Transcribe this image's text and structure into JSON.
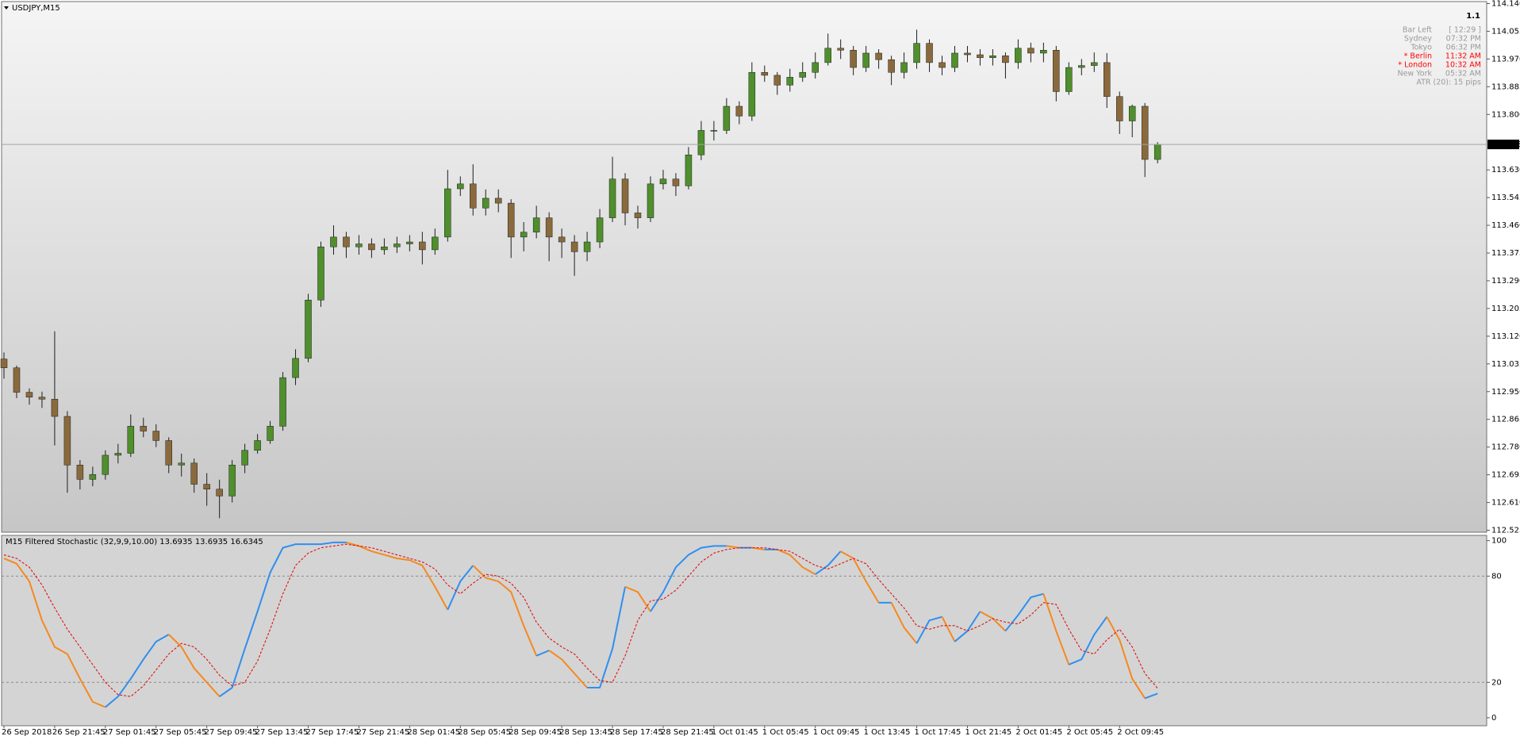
{
  "chart_data": [
    {
      "type": "candlestick",
      "title": "USDJPY,M15",
      "categories": [
        "26 Sep 2018",
        null,
        null,
        null,
        "26 Sep 21:45",
        null,
        null,
        null,
        "27 Sep 01:45",
        null,
        null,
        null,
        "27 Sep 05:45",
        null,
        null,
        null,
        "27 Sep 09:45",
        null,
        null,
        null,
        "27 Sep 13:45",
        null,
        null,
        null,
        "27 Sep 17:45",
        null,
        null,
        null,
        "27 Sep 21:45",
        null,
        null,
        null,
        "28 Sep 01:45",
        null,
        null,
        null,
        "28 Sep 05:45",
        null,
        null,
        null,
        "28 Sep 09:45",
        null,
        null,
        null,
        "28 Sep 13:45",
        null,
        null,
        null,
        "28 Sep 17:45",
        null,
        null,
        null,
        "28 Sep 21:45",
        null,
        null,
        null,
        "1 Oct 01:45",
        null,
        null,
        null,
        "1 Oct 05:45",
        null,
        null,
        null,
        "1 Oct 09:45",
        null,
        null,
        null,
        "1 Oct 13:45",
        null,
        null,
        null,
        "1 Oct 17:45",
        null,
        null,
        null,
        "1 Oct 21:45",
        null,
        null,
        null,
        "2 Oct 01:45",
        null,
        null,
        null,
        "2 Oct 05:45",
        null,
        null,
        null,
        "2 Oct 09:45",
        null,
        null,
        null
      ],
      "open": [
        113.05,
        113.023,
        112.948,
        112.933,
        112.927,
        112.874,
        112.725,
        112.681,
        112.696,
        112.755,
        112.761,
        112.844,
        112.829,
        112.8,
        112.725,
        112.731,
        112.666,
        112.651,
        112.63,
        112.725,
        112.77,
        112.8,
        112.844,
        112.993,
        113.052,
        113.231,
        113.394,
        113.424,
        113.394,
        113.403,
        113.385,
        113.394,
        113.403,
        113.409,
        113.385,
        113.424,
        113.572,
        113.587,
        113.513,
        113.543,
        113.528,
        113.424,
        113.439,
        113.483,
        113.424,
        113.409,
        113.379,
        113.409,
        113.483,
        113.602,
        113.498,
        113.483,
        113.587,
        113.602,
        113.581,
        113.676,
        113.751,
        113.751,
        113.825,
        113.795,
        113.929,
        113.92,
        113.89,
        113.914,
        113.929,
        113.959,
        114.003,
        113.997,
        113.944,
        113.988,
        113.968,
        113.929,
        113.959,
        114.018,
        113.959,
        113.944,
        113.988,
        113.983,
        113.974,
        113.98,
        113.959,
        114.003,
        113.988,
        113.997,
        113.87,
        113.944,
        113.95,
        113.959,
        113.855,
        113.78,
        113.825,
        113.662
      ],
      "high": [
        113.07,
        113.03,
        112.96,
        112.95,
        113.135,
        112.89,
        112.74,
        112.72,
        112.77,
        112.79,
        112.88,
        112.87,
        112.85,
        112.81,
        112.76,
        112.745,
        112.7,
        112.68,
        112.74,
        112.79,
        112.82,
        112.86,
        113.01,
        113.08,
        113.25,
        113.41,
        113.46,
        113.44,
        113.43,
        113.42,
        113.42,
        113.425,
        113.43,
        113.44,
        113.45,
        113.63,
        113.61,
        113.647,
        113.57,
        113.57,
        113.54,
        113.47,
        113.52,
        113.5,
        113.45,
        113.43,
        113.44,
        113.51,
        113.67,
        113.62,
        113.52,
        113.61,
        113.63,
        113.62,
        113.7,
        113.78,
        113.78,
        113.85,
        113.84,
        113.96,
        113.95,
        113.93,
        113.94,
        113.96,
        113.99,
        114.048,
        114.03,
        114.01,
        114.01,
        114.0,
        113.98,
        113.99,
        114.06,
        114.03,
        113.98,
        114.01,
        114.01,
        114.0,
        114.0,
        113.99,
        114.03,
        114.02,
        114.02,
        114.01,
        113.96,
        113.97,
        113.99,
        113.988,
        113.87,
        113.83,
        113.835,
        113.715
      ],
      "low": [
        112.99,
        112.93,
        112.91,
        112.9,
        112.785,
        112.64,
        112.65,
        112.66,
        112.68,
        112.73,
        112.75,
        112.81,
        112.78,
        112.7,
        112.69,
        112.64,
        112.6,
        112.562,
        112.61,
        112.7,
        112.76,
        112.79,
        112.83,
        112.97,
        113.04,
        113.21,
        113.37,
        113.36,
        113.37,
        113.36,
        113.37,
        113.375,
        113.38,
        113.34,
        113.37,
        113.41,
        113.55,
        113.49,
        113.49,
        113.5,
        113.36,
        113.38,
        113.42,
        113.35,
        113.36,
        113.305,
        113.35,
        113.39,
        113.47,
        113.46,
        113.45,
        113.47,
        113.57,
        113.55,
        113.57,
        113.66,
        113.72,
        113.74,
        113.77,
        113.78,
        113.9,
        113.86,
        113.87,
        113.9,
        113.91,
        113.95,
        113.97,
        113.92,
        113.93,
        113.94,
        113.89,
        113.91,
        113.94,
        113.93,
        113.92,
        113.93,
        113.96,
        113.95,
        113.95,
        113.91,
        113.94,
        113.96,
        113.96,
        113.84,
        113.86,
        113.92,
        113.93,
        113.82,
        113.74,
        113.73,
        113.608,
        113.65
      ],
      "close": [
        113.023,
        112.948,
        112.933,
        112.927,
        112.874,
        112.725,
        112.681,
        112.696,
        112.755,
        112.761,
        112.844,
        112.829,
        112.8,
        112.725,
        112.731,
        112.666,
        112.651,
        112.63,
        112.725,
        112.77,
        112.8,
        112.844,
        112.993,
        113.052,
        113.231,
        113.394,
        113.424,
        113.394,
        113.403,
        113.385,
        113.394,
        113.403,
        113.409,
        113.385,
        113.424,
        113.572,
        113.587,
        113.513,
        113.543,
        113.528,
        113.424,
        113.439,
        113.483,
        113.424,
        113.409,
        113.379,
        113.409,
        113.483,
        113.602,
        113.498,
        113.483,
        113.587,
        113.602,
        113.581,
        113.676,
        113.751,
        113.751,
        113.825,
        113.795,
        113.929,
        113.92,
        113.89,
        113.914,
        113.929,
        113.959,
        114.003,
        113.997,
        113.944,
        113.988,
        113.968,
        113.929,
        113.959,
        114.018,
        113.959,
        113.944,
        113.988,
        113.983,
        113.974,
        113.98,
        113.959,
        114.003,
        113.988,
        113.997,
        113.87,
        113.944,
        113.95,
        113.959,
        113.855,
        113.78,
        113.825,
        113.662,
        113.708
      ],
      "up_color": "#4f8f2c",
      "down_color": "#8a6a3c",
      "wick_color": "#1e1e1e",
      "ylim": [
        112.519,
        114.146
      ],
      "yticks": [
        112.525,
        {
          "value": 112.61,
          "label": "112.610"
        },
        112.695,
        {
          "value": 112.78,
          "label": "112.780"
        },
        112.865,
        {
          "value": 112.95,
          "label": "112.950"
        },
        113.035,
        {
          "value": 113.12,
          "label": "113.120"
        },
        113.205,
        {
          "value": 113.29,
          "label": "113.290"
        },
        113.375,
        {
          "value": 113.46,
          "label": "113.460"
        },
        113.545,
        {
          "value": 113.63,
          "label": "113.630"
        },
        {
          "value": 113.8,
          "label": "113.800"
        },
        113.885,
        {
          "value": 113.97,
          "label": "113.970"
        },
        114.055,
        {
          "value": 114.14,
          "label": "114.140"
        }
      ],
      "grid": false
    },
    {
      "type": "line",
      "title": "M15 Filtered Stochastic (32,9,9,10.00) 13.6935 13.6935 16.6345",
      "series": [
        {
          "colors": {
            "up": "#2f8fef",
            "down": "#f5891f"
          },
          "dashed": false,
          "values": [
            90,
            87,
            77,
            55,
            40,
            36,
            22,
            9,
            6,
            12,
            22,
            33,
            43,
            47,
            40,
            28,
            20,
            12,
            17,
            39,
            60,
            82,
            96,
            98,
            98,
            98,
            99,
            99,
            97,
            94,
            92,
            90,
            89,
            86,
            74,
            61,
            77,
            86,
            79,
            77,
            71,
            52,
            35,
            38,
            33,
            25,
            17,
            17,
            39,
            74,
            71,
            60,
            71,
            85,
            92,
            96,
            97,
            97,
            96,
            96,
            95,
            95,
            92,
            85,
            81,
            86,
            94,
            90,
            77,
            65,
            65,
            51,
            42,
            55,
            57,
            43,
            49,
            60,
            56,
            49,
            58,
            68,
            70,
            49,
            30,
            33,
            47,
            57,
            44,
            22,
            11,
            13.6935
          ]
        },
        {
          "color": "#e01010",
          "dashed": true,
          "values": [
            92,
            90,
            85,
            75,
            62,
            50,
            40,
            30,
            20,
            13,
            12,
            18,
            27,
            36,
            42,
            40,
            33,
            24,
            18,
            20,
            32,
            50,
            70,
            86,
            93,
            96,
            97,
            98,
            97,
            96,
            94,
            92,
            90,
            88,
            84,
            75,
            70,
            76,
            81,
            80,
            76,
            68,
            54,
            45,
            40,
            36,
            28,
            21,
            20,
            35,
            55,
            66,
            67,
            72,
            80,
            88,
            93,
            95,
            96,
            96,
            96,
            95,
            94,
            90,
            86,
            84,
            87,
            90,
            87,
            78,
            70,
            62,
            52,
            50,
            52,
            52,
            49,
            52,
            56,
            54,
            53,
            58,
            65,
            64,
            50,
            38,
            36,
            44,
            50,
            40,
            25,
            16.6345
          ]
        }
      ],
      "ylim": [
        -4.5,
        103
      ],
      "yticks": [
        0,
        20,
        80,
        100
      ],
      "levels": [
        20,
        80
      ]
    }
  ],
  "info_panel": {
    "value": "1.1",
    "rows": [
      {
        "label": "Bar Left",
        "time": "[ 12:29 ]",
        "color": "#9a9a9a"
      },
      {
        "label": "Sydney",
        "time": "07:32 PM",
        "color": "#9a9a9a"
      },
      {
        "label": "Tokyo",
        "time": "06:32 PM",
        "color": "#9a9a9a"
      },
      {
        "label": "* Berlin",
        "time": "11:32 AM",
        "color": "#ff0000"
      },
      {
        "label": "* London",
        "time": "10:32 AM",
        "color": "#ff0000"
      },
      {
        "label": "New York",
        "time": "05:32 AM",
        "color": "#9a9a9a"
      }
    ],
    "atr": "ATR (20): 15 pips"
  }
}
